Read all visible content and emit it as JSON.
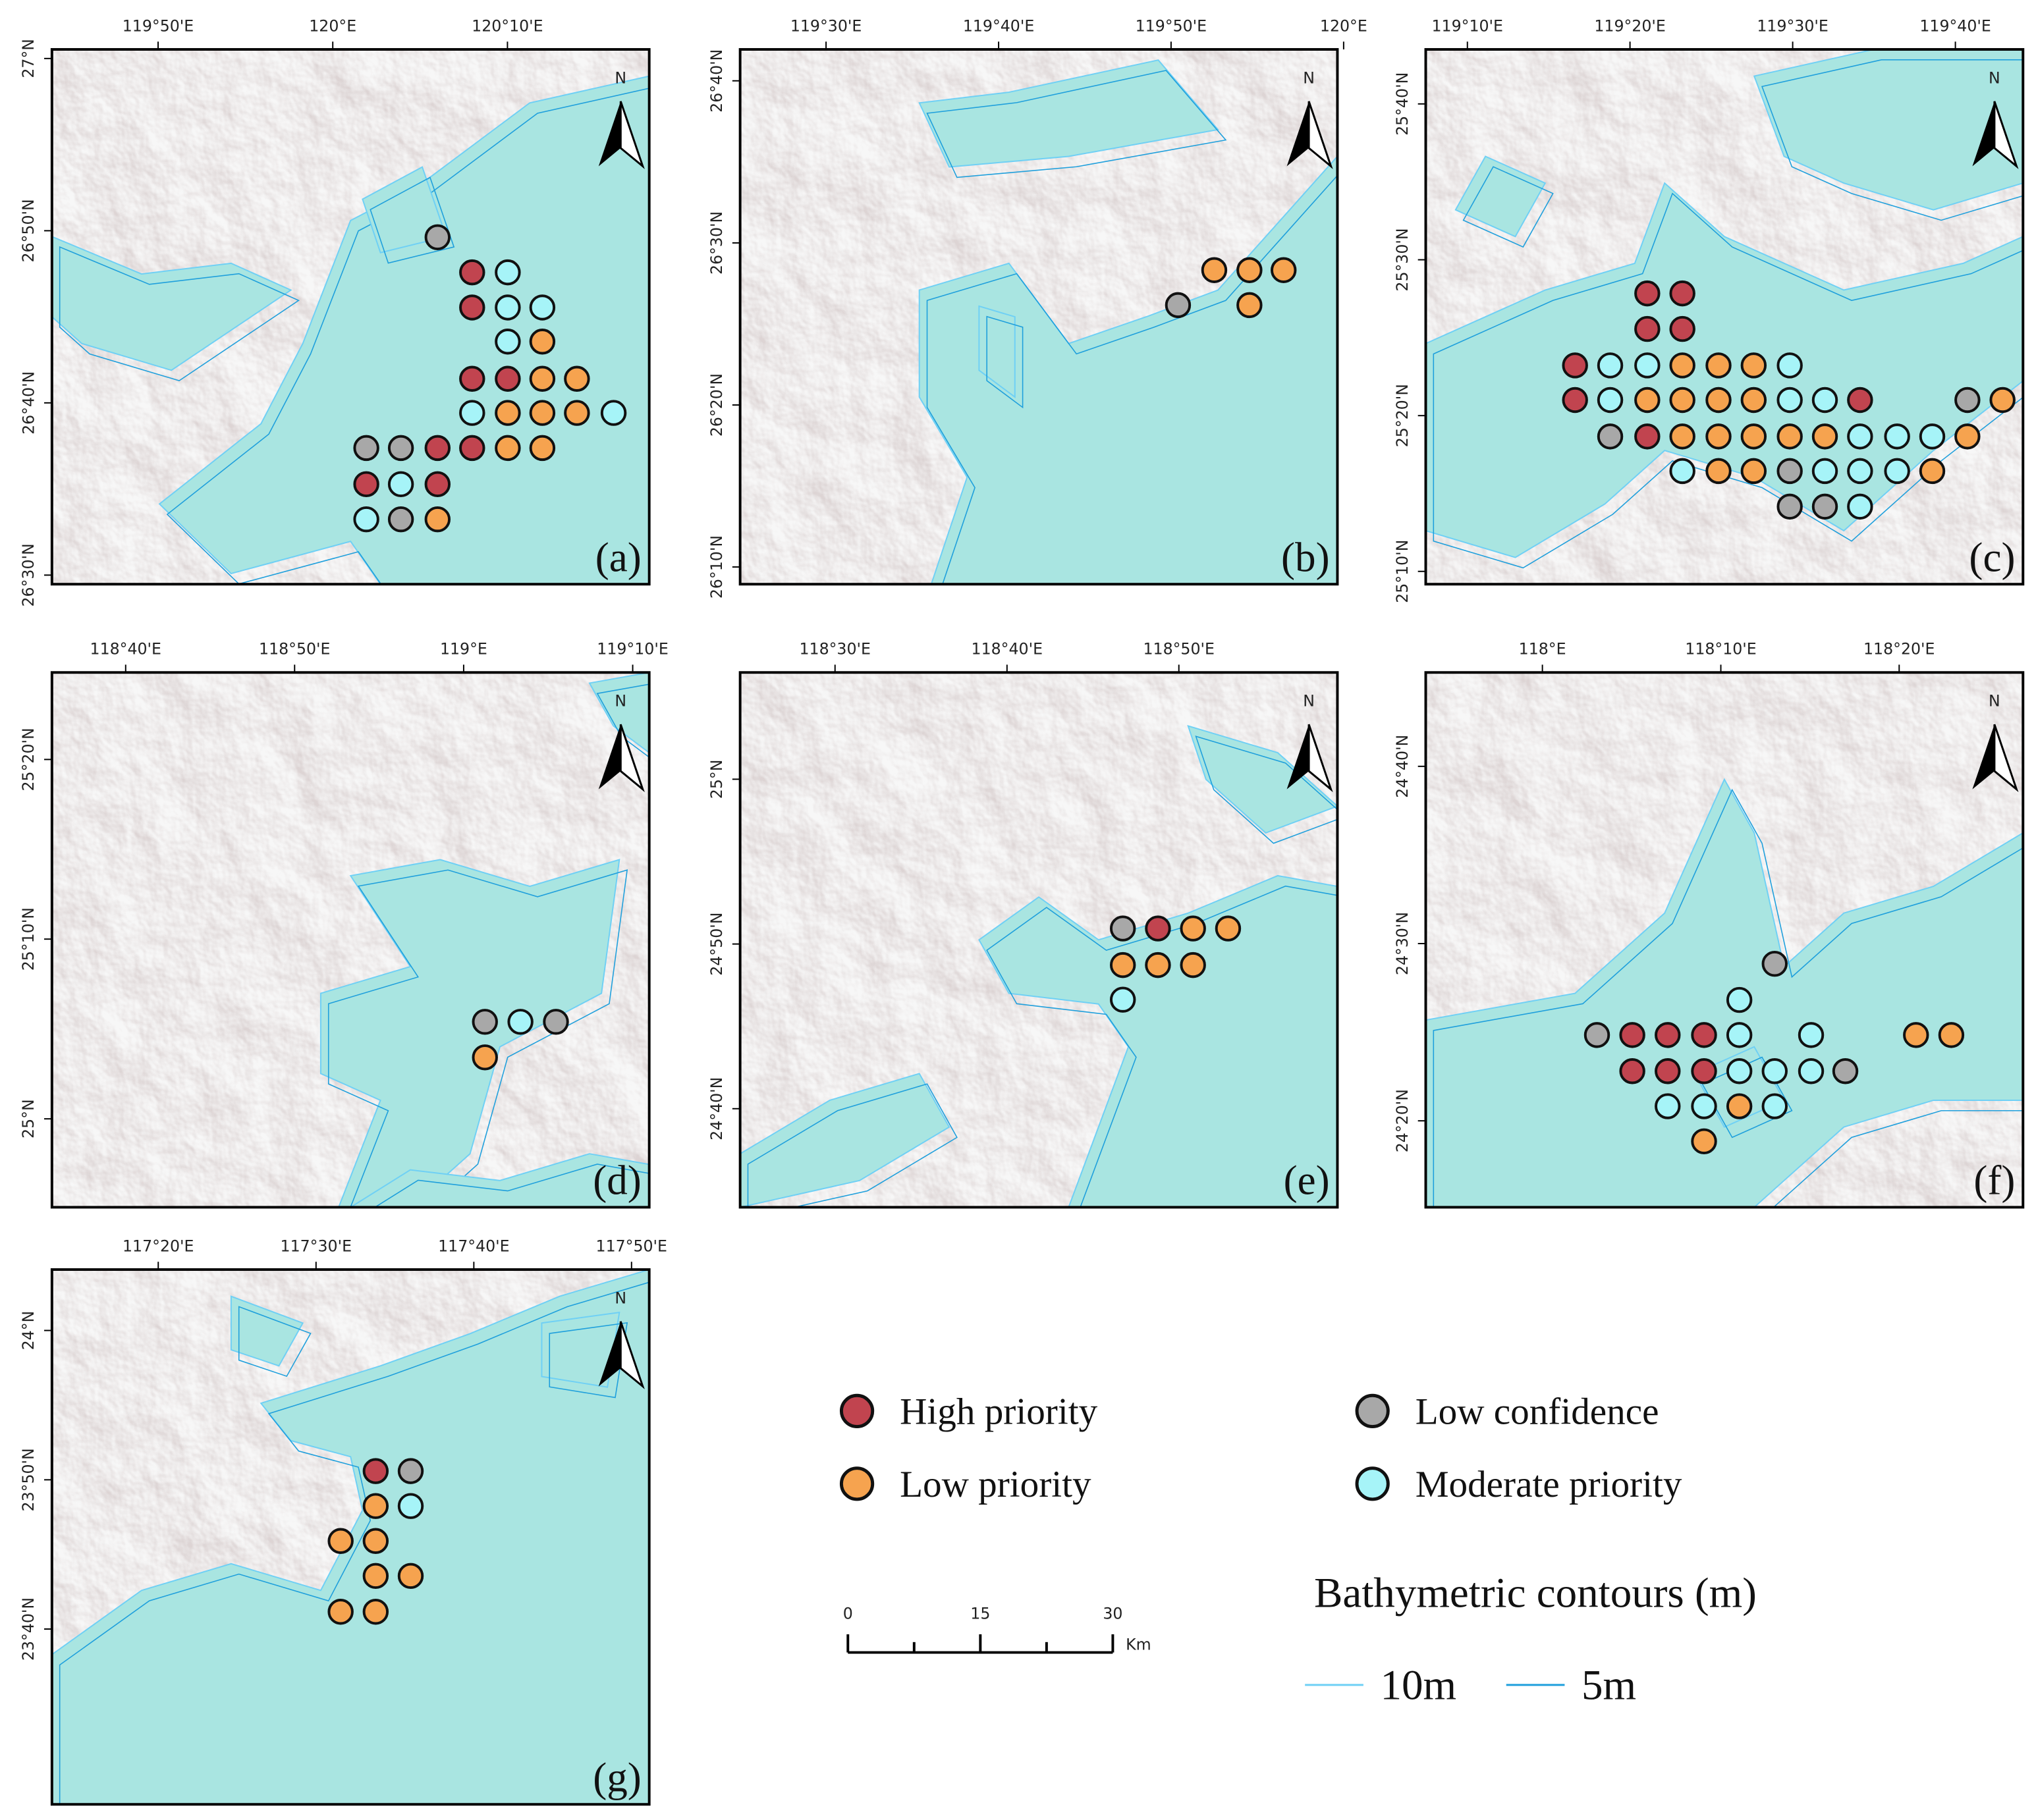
{
  "north_label": "N",
  "legend": {
    "items": [
      {
        "name": "High priority",
        "color": "#c1444f"
      },
      {
        "name": "Low priority",
        "color": "#f6a34f"
      },
      {
        "name": "Low confidence",
        "color": "#a8a8a8"
      },
      {
        "name": "Moderate priority",
        "color": "#a6f4f8"
      }
    ]
  },
  "scale_bar": {
    "ticks": [
      0,
      15,
      30
    ],
    "unit": "Km"
  },
  "contours": {
    "title": "Bathymetric contours (m)",
    "lines": [
      {
        "name": "10m",
        "color": "#6fd0f5"
      },
      {
        "name": "5m",
        "color": "#1e9fdc"
      }
    ]
  },
  "panels": [
    {
      "label": "(a)",
      "lonlim": [
        119.732,
        120.302
      ],
      "latlim": [
        26.4912,
        27.0088
      ],
      "lonticks": [
        {
          "value": 119.8333,
          "label": "119°50'E"
        },
        {
          "value": 120,
          "label": "120°E"
        },
        {
          "value": 120.1667,
          "label": "120°10'E"
        }
      ],
      "latticks": [
        {
          "value": 27,
          "label": "27°N"
        },
        {
          "value": 26.8333,
          "label": "26°50'N"
        },
        {
          "value": 26.6667,
          "label": "26°40'N"
        },
        {
          "value": 26.5,
          "label": "26°30'N"
        }
      ],
      "sites": [
        {
          "lon": [
            120.133,
            120.133,
            120.133,
            120.167,
            120.133,
            120.1,
            120.032,
            120.1
          ],
          "lat": [
            26.793,
            26.759,
            26.69,
            26.69,
            26.623,
            26.623,
            26.588,
            26.588
          ]
        },
        {
          "lon": [
            120.2,
            120.2,
            120.233,
            120.167,
            120.2,
            120.233,
            120.167,
            120.2,
            120.1
          ],
          "lat": [
            26.726,
            26.69,
            26.69,
            26.657,
            26.657,
            26.657,
            26.623,
            26.623,
            26.554
          ]
        },
        {
          "lon": [
            120.1,
            120.032,
            120.065,
            120.065
          ],
          "lat": [
            26.827,
            26.623,
            26.623,
            26.554
          ]
        },
        {
          "lon": [
            120.167,
            120.167,
            120.2,
            120.167,
            120.133,
            120.268,
            120.032,
            120.065
          ],
          "lat": [
            26.793,
            26.759,
            26.759,
            26.726,
            26.657,
            26.657,
            26.554,
            26.588
          ]
        }
      ]
    },
    {
      "label": "(b)",
      "lonlim": [
        119.417,
        119.994
      ],
      "latlim": [
        26.149,
        26.699
      ],
      "lonticks": [
        {
          "value": 119.5,
          "label": "119°30'E"
        },
        {
          "value": 119.6667,
          "label": "119°40'E"
        },
        {
          "value": 119.8333,
          "label": "119°50'E"
        },
        {
          "value": 120,
          "label": "120°E"
        }
      ],
      "latticks": [
        {
          "value": 26.6667,
          "label": "26°40'N"
        },
        {
          "value": 26.5,
          "label": "26°30'N"
        },
        {
          "value": 26.3333,
          "label": "26°20'N"
        },
        {
          "value": 26.1667,
          "label": "26°10'N"
        }
      ],
      "sites": [
        {
          "lon": [],
          "lat": []
        },
        {
          "lon": [
            119.875,
            119.909,
            119.942,
            119.909
          ],
          "lat": [
            26.472,
            26.472,
            26.472,
            26.436
          ]
        },
        {
          "lon": [
            119.84
          ],
          "lat": [
            26.436
          ]
        },
        {
          "lon": [],
          "lat": []
        }
      ]
    },
    {
      "label": "(c)",
      "lonlim": [
        119.124,
        119.736
      ],
      "latlim": [
        25.153,
        25.725
      ],
      "lonticks": [
        {
          "value": 119.1667,
          "label": "119°10'E"
        },
        {
          "value": 119.3333,
          "label": "119°20'E"
        },
        {
          "value": 119.5,
          "label": "119°30'E"
        },
        {
          "value": 119.6667,
          "label": "119°40'E"
        }
      ],
      "latticks": [
        {
          "value": 25.6667,
          "label": "25°40'N"
        },
        {
          "value": 25.5,
          "label": "25°30'N"
        },
        {
          "value": 25.3333,
          "label": "25°20'N"
        },
        {
          "value": 25.1667,
          "label": "25°10'N"
        }
      ],
      "sites": [
        {
          "lon": [
            119.351,
            119.387,
            119.351,
            119.387,
            119.277,
            119.277,
            119.569,
            119.351
          ],
          "lat": [
            25.464,
            25.464,
            25.426,
            25.426,
            25.387,
            25.35,
            25.35,
            25.311
          ]
        },
        {
          "lon": [
            119.387,
            119.424,
            119.46,
            119.351,
            119.387,
            119.424,
            119.46,
            119.715,
            119.387,
            119.424,
            119.46,
            119.497,
            119.533,
            119.679,
            119.424,
            119.46,
            119.643
          ],
          "lat": [
            25.387,
            25.387,
            25.387,
            25.35,
            25.35,
            25.35,
            25.35,
            25.35,
            25.311,
            25.311,
            25.311,
            25.311,
            25.311,
            25.311,
            25.274,
            25.274,
            25.274
          ]
        },
        {
          "lon": [
            119.679,
            119.313,
            119.497,
            119.497,
            119.533
          ],
          "lat": [
            25.35,
            25.311,
            25.274,
            25.236,
            25.236
          ]
        },
        {
          "lon": [
            119.313,
            119.351,
            119.497,
            119.313,
            119.497,
            119.533,
            119.569,
            119.607,
            119.643,
            119.387,
            119.533,
            119.569,
            119.607,
            119.569
          ],
          "lat": [
            25.387,
            25.387,
            25.387,
            25.35,
            25.35,
            25.35,
            25.311,
            25.311,
            25.311,
            25.274,
            25.274,
            25.274,
            25.274,
            25.236
          ]
        }
      ]
    },
    {
      "label": "(d)",
      "lonlim": [
        118.594,
        119.183
      ],
      "latlim": [
        24.918,
        25.414
      ],
      "lonticks": [
        {
          "value": 118.6667,
          "label": "118°40'E"
        },
        {
          "value": 118.8333,
          "label": "118°50'E"
        },
        {
          "value": 119,
          "label": "119°E"
        },
        {
          "value": 119.1667,
          "label": "119°10'E"
        }
      ],
      "latticks": [
        {
          "value": 25.3333,
          "label": "25°20'N"
        },
        {
          "value": 25.1667,
          "label": "25°10'N"
        },
        {
          "value": 25,
          "label": "25°N"
        }
      ],
      "sites": [
        {
          "lon": [],
          "lat": []
        },
        {
          "lon": [
            119.021
          ],
          "lat": [
            25.057
          ]
        },
        {
          "lon": [
            119.021,
            119.091
          ],
          "lat": [
            25.09,
            25.09
          ]
        },
        {
          "lon": [
            119.056
          ],
          "lat": [
            25.09
          ]
        }
      ]
    },
    {
      "label": "(e)",
      "lonlim": [
        118.408,
        118.987
      ],
      "latlim": [
        24.567,
        25.108
      ],
      "lonticks": [
        {
          "value": 118.5,
          "label": "118°30'E"
        },
        {
          "value": 118.6667,
          "label": "118°40'E"
        },
        {
          "value": 118.8333,
          "label": "118°50'E"
        }
      ],
      "latticks": [
        {
          "value": 25,
          "label": "25°N"
        },
        {
          "value": 24.8333,
          "label": "24°50'N"
        },
        {
          "value": 24.6667,
          "label": "24°40'N"
        }
      ],
      "sites": [
        {
          "lon": [
            118.813
          ],
          "lat": [
            24.849
          ]
        },
        {
          "lon": [
            118.847,
            118.881,
            118.779,
            118.813,
            118.847
          ],
          "lat": [
            24.849,
            24.849,
            24.812,
            24.812,
            24.812
          ]
        },
        {
          "lon": [
            118.779
          ],
          "lat": [
            24.849
          ]
        },
        {
          "lon": [
            118.779
          ],
          "lat": [
            24.777
          ]
        }
      ]
    },
    {
      "label": "(f)",
      "lonlim": [
        117.891,
        118.449
      ],
      "latlim": [
        24.252,
        24.755
      ],
      "lonticks": [
        {
          "value": 118,
          "label": "118°E"
        },
        {
          "value": 118.1667,
          "label": "118°10'E"
        },
        {
          "value": 118.3333,
          "label": "118°20'E"
        }
      ],
      "latticks": [
        {
          "value": 24.6667,
          "label": "24°40'N"
        },
        {
          "value": 24.5,
          "label": "24°30'N"
        },
        {
          "value": 24.3333,
          "label": "24°20'N"
        }
      ],
      "sites": [
        {
          "lon": [
            118.084,
            118.117,
            118.151,
            118.084,
            118.117,
            118.151
          ],
          "lat": [
            24.414,
            24.414,
            24.414,
            24.38,
            24.38,
            24.38
          ]
        },
        {
          "lon": [
            118.349,
            118.382,
            118.184,
            118.151
          ],
          "lat": [
            24.414,
            24.414,
            24.347,
            24.314
          ]
        },
        {
          "lon": [
            118.217,
            118.051,
            118.283
          ],
          "lat": [
            24.481,
            24.414,
            24.38
          ]
        },
        {
          "lon": [
            118.184,
            118.184,
            118.251,
            118.184,
            118.217,
            118.251,
            118.117,
            118.151,
            118.217
          ],
          "lat": [
            24.447,
            24.414,
            24.414,
            24.38,
            24.38,
            24.38,
            24.347,
            24.347,
            24.347
          ]
        }
      ]
    },
    {
      "label": "(g)",
      "lonlim": [
        117.221,
        117.852
      ],
      "latlim": [
        23.471,
        24.068
      ],
      "lonticks": [
        {
          "value": 117.3333,
          "label": "117°20'E"
        },
        {
          "value": 117.5,
          "label": "117°30'E"
        },
        {
          "value": 117.6667,
          "label": "117°40'E"
        },
        {
          "value": 117.8333,
          "label": "117°50'E"
        }
      ],
      "latticks": [
        {
          "value": 24,
          "label": "24°N"
        },
        {
          "value": 23.8333,
          "label": "23°50'N"
        },
        {
          "value": 23.6667,
          "label": "23°40'N"
        }
      ],
      "sites": [
        {
          "lon": [
            117.563
          ],
          "lat": [
            23.843
          ]
        },
        {
          "lon": [
            117.563,
            117.526,
            117.563,
            117.563,
            117.6,
            117.526,
            117.563
          ],
          "lat": [
            23.804,
            23.765,
            23.765,
            23.726,
            23.726,
            23.686,
            23.686
          ]
        },
        {
          "lon": [
            117.6
          ],
          "lat": [
            23.843
          ]
        },
        {
          "lon": [
            117.6
          ],
          "lat": [
            23.804
          ]
        }
      ]
    }
  ]
}
